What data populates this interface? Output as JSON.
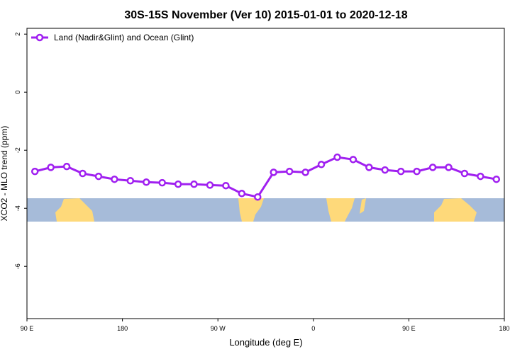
{
  "chart_data": {
    "type": "line",
    "title": "30S-15S November (Ver 10)   2015-01-01 to 2020-12-18",
    "x_label": "Longitude (deg E)",
    "y_label": "XCO2 - MLO trend (ppm)",
    "x": [
      97.5,
      112.5,
      127.5,
      142.5,
      157.5,
      172.5,
      187.5,
      202.5,
      217.5,
      232.5,
      247.5,
      262.5,
      277.5,
      292.5,
      307.5,
      322.5,
      337.5,
      352.5,
      367.5,
      382.5,
      397.5,
      412.5,
      427.5,
      442.5,
      457.5,
      472.5,
      487.5,
      502.5,
      517.5,
      532.5
    ],
    "series": [
      {
        "name": "Land (Nadir&Glint) and Ocean (Glint)",
        "color": "#a020f0",
        "values": [
          -2.73,
          -2.59,
          -2.56,
          -2.8,
          -2.9,
          -3.0,
          -3.05,
          -3.1,
          -3.12,
          -3.17,
          -3.17,
          -3.2,
          -3.22,
          -3.49,
          -3.61,
          -2.76,
          -2.73,
          -2.76,
          -2.49,
          -2.24,
          -2.32,
          -2.59,
          -2.68,
          -2.73,
          -2.73,
          -2.59,
          -2.59,
          -2.8,
          -2.9,
          -3.0
        ]
      }
    ],
    "xlim": [
      90,
      540
    ],
    "xticks": [
      {
        "value": 90,
        "label": "90 E"
      },
      180,
      {
        "value": 270,
        "label": "90 W"
      },
      {
        "value": 360,
        "label": "0"
      },
      {
        "value": 450,
        "label": "90 E"
      },
      {
        "value": 540,
        "label": "180"
      }
    ],
    "ylim": [
      -7.8,
      2.2
    ],
    "yticks": [
      2,
      0,
      -2,
      -4,
      -6
    ],
    "legend": "top-left"
  }
}
